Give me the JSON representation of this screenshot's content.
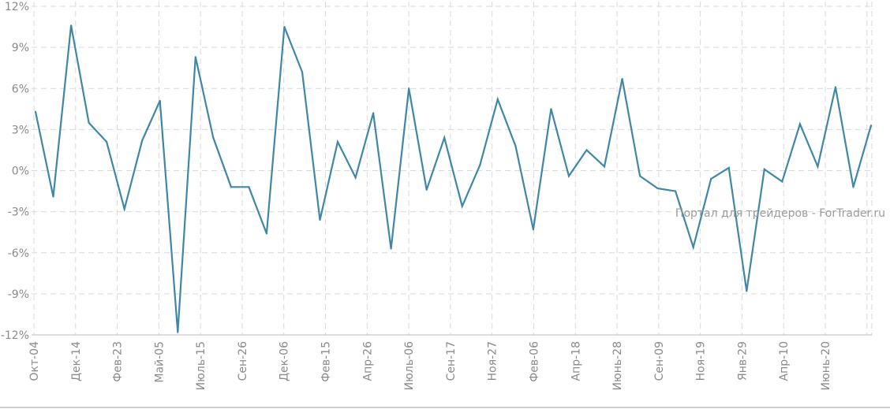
{
  "chart_data": {
    "type": "line",
    "title": "",
    "xlabel": "",
    "ylabel": "",
    "ylim": [
      -12,
      12
    ],
    "y_ticks": [
      12,
      9,
      6,
      3,
      0,
      -3,
      -6,
      -9,
      -12
    ],
    "y_tick_labels": [
      "12%",
      "9%",
      "6%",
      "3%",
      "0%",
      "-3%",
      "-6%",
      "-9%",
      "-12%"
    ],
    "x_tick_labels": [
      "Окт-04",
      "Дек-14",
      "Фев-23",
      "Май-05",
      "Июль-15",
      "Сен-26",
      "Дек-06",
      "Фев-15",
      "Апр-26",
      "Июль-06",
      "Сен-17",
      "Ноя-27",
      "Фев-06",
      "Апр-18",
      "Июнь-28",
      "Сен-09",
      "Ноя-19",
      "Янв-29",
      "Апр-10",
      "Июнь-20"
    ],
    "grid": true,
    "legend": "none",
    "series": [
      {
        "color": "#3f87a6",
        "values": [
          4.3,
          -1.9,
          10.6,
          3.5,
          2.1,
          -2.8,
          2.2,
          5.1,
          -11.8,
          8.3,
          2.4,
          -1.2,
          -1.2,
          -4.6,
          10.5,
          7.2,
          -3.6,
          2.1,
          -0.5,
          4.2,
          -5.7,
          6.0,
          -1.4,
          2.4,
          -2.6,
          0.4,
          5.2,
          1.8,
          -4.3,
          4.5,
          -0.4,
          1.5,
          0.3,
          6.7,
          -0.4,
          -1.3,
          -1.5,
          -5.6,
          -0.6,
          0.2,
          -8.8,
          0.1,
          -0.8,
          3.4,
          0.3,
          6.1,
          -1.2,
          3.3
        ]
      }
    ],
    "annotations": [
      "Портал для трейдеров - ForTrader.ru"
    ]
  }
}
